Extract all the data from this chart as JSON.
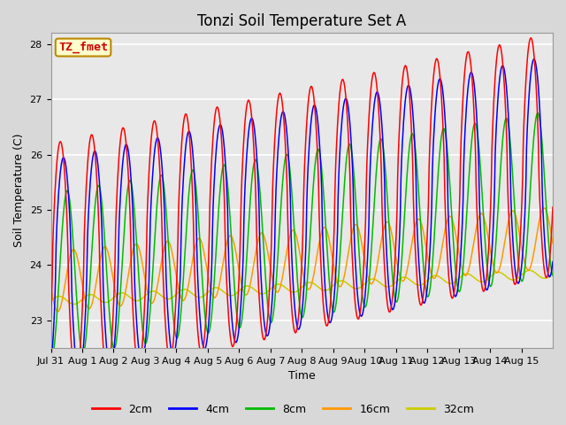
{
  "title": "Tonzi Soil Temperature Set A",
  "xlabel": "Time",
  "ylabel": "Soil Temperature (C)",
  "ylim": [
    22.5,
    28.2
  ],
  "xlim": [
    0,
    16
  ],
  "xtick_labels": [
    "Jul 31",
    "Aug 1",
    "Aug 2",
    "Aug 3",
    "Aug 4",
    "Aug 5",
    "Aug 6",
    "Aug 7",
    "Aug 8",
    "Aug 9",
    "Aug 10",
    "Aug 11",
    "Aug 12",
    "Aug 13",
    "Aug 14",
    "Aug 15"
  ],
  "annotation_text": "TZ_fmet",
  "annotation_box_color": "#ffffcc",
  "annotation_box_edge": "#bb8800",
  "annotation_text_color": "#cc0000",
  "colors": {
    "2cm": "#ff0000",
    "4cm": "#0000ff",
    "8cm": "#00bb00",
    "16cm": "#ff9900",
    "32cm": "#cccc00"
  },
  "bg_color": "#d8d8d8",
  "plot_bg": "#e8e8e8",
  "grid_color": "#ffffff",
  "title_fontsize": 12,
  "label_fontsize": 9,
  "tick_fontsize": 8,
  "legend_fontsize": 9
}
